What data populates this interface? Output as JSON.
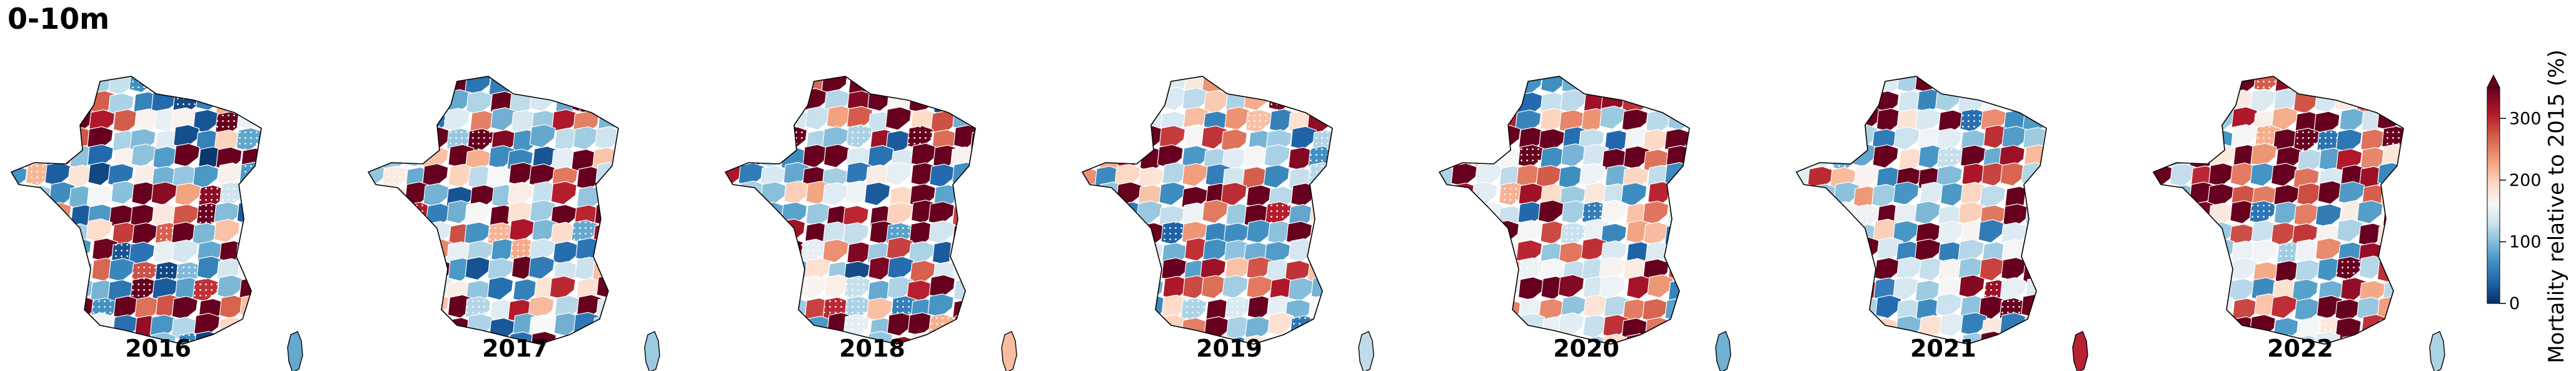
{
  "chart_data": {
    "type": "choropleth-map",
    "title": "0-10m",
    "panels": [
      {
        "label": "2016",
        "corsica_value": 85
      },
      {
        "label": "2017",
        "corsica_value": 110
      },
      {
        "label": "2018",
        "corsica_value": 230
      },
      {
        "label": "2019",
        "corsica_value": 130
      },
      {
        "label": "2020",
        "corsica_value": 90
      },
      {
        "label": "2021",
        "corsica_value": 310
      },
      {
        "label": "2022",
        "corsica_value": 120
      }
    ],
    "colorbar": {
      "label": "Mortality relative to 2015 (%)",
      "ticks": [
        0,
        100,
        200,
        300
      ],
      "range": [
        0,
        350
      ],
      "extend": "max",
      "colormap": [
        "#053061",
        "#2166ac",
        "#4393c3",
        "#92c5de",
        "#d1e5f0",
        "#f7f7f7",
        "#fddbc7",
        "#f4a582",
        "#d6604d",
        "#b2182b",
        "#67001f"
      ]
    }
  }
}
